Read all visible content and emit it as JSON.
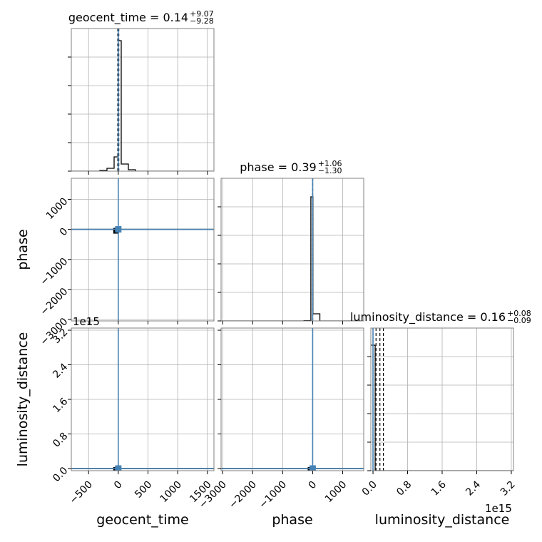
{
  "chart_data": {
    "type": "corner",
    "parameters": [
      "geocent_time",
      "phase",
      "luminosity_distance"
    ],
    "colors": {
      "truth": "#4682b4",
      "hist": "#000000",
      "grid": "#b0b0b0",
      "spine": "#808080"
    },
    "titles": [
      {
        "text": "geocent_time = 0.14",
        "sup": "+9.07",
        "sub": "−9.28"
      },
      {
        "text": "phase = 0.39",
        "sup": "+1.06",
        "sub": "−1.30"
      },
      {
        "text": "luminosity_distance = 0.16",
        "sup": "+0.08",
        "sub": "−0.09"
      }
    ],
    "truths": [
      0,
      0,
      0
    ],
    "axes": {
      "geocent_time": {
        "range": [
          -790,
          1610
        ],
        "ticks": [
          -500,
          0,
          500,
          1000,
          1500
        ],
        "tick_labels": [
          "−500",
          "0",
          "500",
          "1000",
          "1500"
        ]
      },
      "phase": {
        "range": [
          -3050,
          1700
        ],
        "ticks": [
          -3000,
          -2000,
          -1000,
          0,
          1000
        ],
        "tick_labels": [
          "−3000",
          "−2000",
          "−1000",
          "0",
          "1000"
        ]
      },
      "luminosity_distance": {
        "range": [
          -0.05,
          3.25
        ],
        "ticks": [
          0.0,
          0.8,
          1.6,
          2.4,
          3.2
        ],
        "tick_labels": [
          "0.0",
          "0.8",
          "1.6",
          "2.4",
          "3.2"
        ],
        "offset_text": "1e15"
      }
    },
    "hist1d": {
      "geocent_time": {
        "edges": [
          -790,
          -670,
          -550,
          -430,
          -310,
          -190,
          -70,
          0,
          50,
          170,
          290,
          410,
          530,
          650,
          770,
          890,
          1010,
          1130,
          1250,
          1370,
          1490,
          1610
        ],
        "counts": [
          0,
          0,
          0,
          0,
          0.005,
          0.02,
          0.1,
          0.915,
          0.05,
          0.01,
          0,
          0,
          0,
          0,
          0,
          0,
          0,
          0,
          0,
          0,
          0
        ],
        "median": 0.14,
        "q_lo": -9.14,
        "q_hi": 9.21
      },
      "phase": {
        "edges": [
          -3050,
          -2820,
          -2590,
          -2360,
          -2130,
          -1900,
          -1670,
          -1440,
          -1210,
          -980,
          -750,
          -520,
          -290,
          -60,
          10,
          240,
          470,
          700,
          930,
          1160,
          1390,
          1620
        ],
        "counts": [
          0,
          0,
          0,
          0,
          0,
          0,
          0,
          0,
          0,
          0,
          0,
          0,
          0.002,
          0.87,
          0.05,
          0.0,
          0,
          0,
          0,
          0,
          0
        ],
        "median": 0.39,
        "q_lo": -0.91,
        "q_hi": 1.45
      },
      "luminosity_distance": {
        "edges": [
          -0.05,
          0.05,
          3.25
        ],
        "counts": [
          0.88,
          0
        ],
        "median": 0.16,
        "q_lo": 0.07,
        "q_hi": 0.24
      }
    },
    "hist_ylim": [
      0,
      1
    ]
  }
}
